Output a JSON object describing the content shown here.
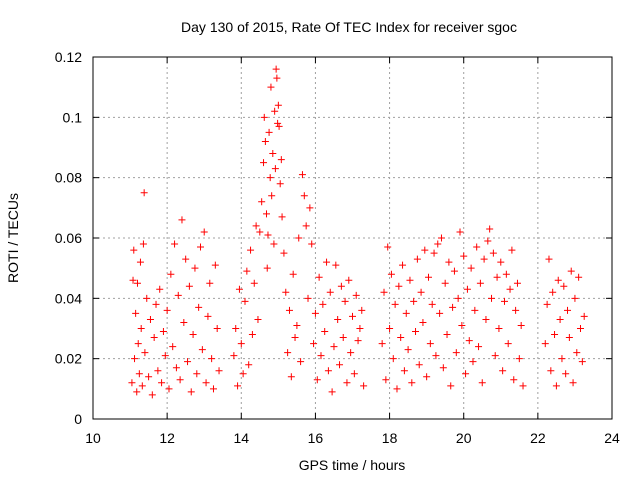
{
  "chart_data": {
    "type": "scatter",
    "title": "Day 130 of 2015, Rate Of TEC Index for receiver sgoc",
    "xlabel": "GPS time / hours",
    "ylabel": "ROTI / TECUs",
    "xlim": [
      10,
      24
    ],
    "ylim": [
      0,
      0.12
    ],
    "x_ticks": [
      10,
      12,
      14,
      16,
      18,
      20,
      22,
      24
    ],
    "x_tick_labels": [
      "10",
      "12",
      "14",
      "16",
      "18",
      "20",
      "22",
      "24"
    ],
    "y_ticks": [
      0,
      0.02,
      0.04,
      0.06,
      0.08,
      0.1,
      0.12
    ],
    "y_tick_labels": [
      "0",
      "0.02",
      "0.04",
      "0.06",
      "0.08",
      "0.1",
      "0.12"
    ],
    "grid": true,
    "marker": "+",
    "series_color": "#ff0000",
    "series": [
      {
        "name": "ROTI",
        "points": [
          [
            11.05,
            0.012
          ],
          [
            11.08,
            0.046
          ],
          [
            11.1,
            0.056
          ],
          [
            11.12,
            0.02
          ],
          [
            11.15,
            0.035
          ],
          [
            11.18,
            0.009
          ],
          [
            11.2,
            0.045
          ],
          [
            11.22,
            0.025
          ],
          [
            11.25,
            0.015
          ],
          [
            11.28,
            0.052
          ],
          [
            11.3,
            0.03
          ],
          [
            11.33,
            0.011
          ],
          [
            11.36,
            0.058
          ],
          [
            11.38,
            0.075
          ],
          [
            11.4,
            0.022
          ],
          [
            11.45,
            0.04
          ],
          [
            11.5,
            0.014
          ],
          [
            11.55,
            0.033
          ],
          [
            11.6,
            0.008
          ],
          [
            11.65,
            0.027
          ],
          [
            11.7,
            0.038
          ],
          [
            11.75,
            0.016
          ],
          [
            11.8,
            0.043
          ],
          [
            11.85,
            0.012
          ],
          [
            11.9,
            0.029
          ],
          [
            11.95,
            0.021
          ],
          [
            12.0,
            0.036
          ],
          [
            12.05,
            0.01
          ],
          [
            12.1,
            0.048
          ],
          [
            12.15,
            0.024
          ],
          [
            12.2,
            0.058
          ],
          [
            12.25,
            0.017
          ],
          [
            12.3,
            0.041
          ],
          [
            12.35,
            0.013
          ],
          [
            12.4,
            0.066
          ],
          [
            12.45,
            0.032
          ],
          [
            12.5,
            0.053
          ],
          [
            12.55,
            0.019
          ],
          [
            12.6,
            0.044
          ],
          [
            12.65,
            0.009
          ],
          [
            12.7,
            0.028
          ],
          [
            12.75,
            0.05
          ],
          [
            12.8,
            0.015
          ],
          [
            12.85,
            0.037
          ],
          [
            12.9,
            0.057
          ],
          [
            12.95,
            0.023
          ],
          [
            13.0,
            0.062
          ],
          [
            13.05,
            0.012
          ],
          [
            13.1,
            0.034
          ],
          [
            13.15,
            0.045
          ],
          [
            13.2,
            0.02
          ],
          [
            13.25,
            0.01
          ],
          [
            13.3,
            0.051
          ],
          [
            13.35,
            0.03
          ],
          [
            13.4,
            0.016
          ],
          [
            13.8,
            0.021
          ],
          [
            13.85,
            0.03
          ],
          [
            13.9,
            0.011
          ],
          [
            13.95,
            0.043
          ],
          [
            14.0,
            0.025
          ],
          [
            14.05,
            0.015
          ],
          [
            14.1,
            0.039
          ],
          [
            14.15,
            0.049
          ],
          [
            14.2,
            0.018
          ],
          [
            14.25,
            0.056
          ],
          [
            14.3,
            0.028
          ],
          [
            14.35,
            0.045
          ],
          [
            14.4,
            0.064
          ],
          [
            14.45,
            0.033
          ],
          [
            14.5,
            0.062
          ],
          [
            14.55,
            0.072
          ],
          [
            14.6,
            0.085
          ],
          [
            14.62,
            0.1
          ],
          [
            14.65,
            0.092
          ],
          [
            14.68,
            0.068
          ],
          [
            14.7,
            0.05
          ],
          [
            14.72,
            0.061
          ],
          [
            14.75,
            0.095
          ],
          [
            14.78,
            0.08
          ],
          [
            14.8,
            0.11
          ],
          [
            14.82,
            0.074
          ],
          [
            14.85,
            0.088
          ],
          [
            14.88,
            0.058
          ],
          [
            14.9,
            0.102
          ],
          [
            14.92,
            0.083
          ],
          [
            14.94,
            0.116
          ],
          [
            14.96,
            0.113
          ],
          [
            14.98,
            0.098
          ],
          [
            15.0,
            0.104
          ],
          [
            15.02,
            0.097
          ],
          [
            15.05,
            0.078
          ],
          [
            15.08,
            0.086
          ],
          [
            15.1,
            0.067
          ],
          [
            15.15,
            0.055
          ],
          [
            15.2,
            0.042
          ],
          [
            15.25,
            0.022
          ],
          [
            15.3,
            0.036
          ],
          [
            15.35,
            0.014
          ],
          [
            15.4,
            0.048
          ],
          [
            15.45,
            0.027
          ],
          [
            15.5,
            0.031
          ],
          [
            15.55,
            0.06
          ],
          [
            15.6,
            0.019
          ],
          [
            15.65,
            0.081
          ],
          [
            15.7,
            0.074
          ],
          [
            15.75,
            0.064
          ],
          [
            15.8,
            0.04
          ],
          [
            15.85,
            0.07
          ],
          [
            15.9,
            0.058
          ],
          [
            15.95,
            0.025
          ],
          [
            16.0,
            0.035
          ],
          [
            16.05,
            0.013
          ],
          [
            16.1,
            0.047
          ],
          [
            16.15,
            0.021
          ],
          [
            16.2,
            0.038
          ],
          [
            16.25,
            0.029
          ],
          [
            16.3,
            0.052
          ],
          [
            16.35,
            0.016
          ],
          [
            16.4,
            0.042
          ],
          [
            16.45,
            0.009
          ],
          [
            16.5,
            0.024
          ],
          [
            16.55,
            0.051
          ],
          [
            16.6,
            0.033
          ],
          [
            16.65,
            0.018
          ],
          [
            16.7,
            0.044
          ],
          [
            16.75,
            0.027
          ],
          [
            16.8,
            0.039
          ],
          [
            16.85,
            0.012
          ],
          [
            16.9,
            0.046
          ],
          [
            16.95,
            0.022
          ],
          [
            17.0,
            0.034
          ],
          [
            17.05,
            0.015
          ],
          [
            17.1,
            0.041
          ],
          [
            17.15,
            0.026
          ],
          [
            17.2,
            0.03
          ],
          [
            17.25,
            0.036
          ],
          [
            17.3,
            0.011
          ],
          [
            17.8,
            0.025
          ],
          [
            17.85,
            0.042
          ],
          [
            17.9,
            0.013
          ],
          [
            17.95,
            0.057
          ],
          [
            18.0,
            0.03
          ],
          [
            18.05,
            0.048
          ],
          [
            18.1,
            0.02
          ],
          [
            18.15,
            0.038
          ],
          [
            18.2,
            0.01
          ],
          [
            18.25,
            0.044
          ],
          [
            18.3,
            0.027
          ],
          [
            18.35,
            0.051
          ],
          [
            18.4,
            0.016
          ],
          [
            18.45,
            0.035
          ],
          [
            18.5,
            0.023
          ],
          [
            18.55,
            0.046
          ],
          [
            18.6,
            0.012
          ],
          [
            18.65,
            0.039
          ],
          [
            18.7,
            0.029
          ],
          [
            18.75,
            0.053
          ],
          [
            18.8,
            0.018
          ],
          [
            18.85,
            0.042
          ],
          [
            18.9,
            0.032
          ],
          [
            18.95,
            0.056
          ],
          [
            19.0,
            0.014
          ],
          [
            19.05,
            0.047
          ],
          [
            19.1,
            0.025
          ],
          [
            19.15,
            0.038
          ],
          [
            19.2,
            0.055
          ],
          [
            19.25,
            0.021
          ],
          [
            19.3,
            0.058
          ],
          [
            19.35,
            0.035
          ],
          [
            19.4,
            0.06
          ],
          [
            19.45,
            0.017
          ],
          [
            19.5,
            0.045
          ],
          [
            19.55,
            0.028
          ],
          [
            19.6,
            0.052
          ],
          [
            19.65,
            0.011
          ],
          [
            19.7,
            0.037
          ],
          [
            19.75,
            0.049
          ],
          [
            19.8,
            0.022
          ],
          [
            19.85,
            0.04
          ],
          [
            19.9,
            0.062
          ],
          [
            19.95,
            0.031
          ],
          [
            20.0,
            0.054
          ],
          [
            20.05,
            0.015
          ],
          [
            20.1,
            0.043
          ],
          [
            20.15,
            0.026
          ],
          [
            20.2,
            0.05
          ],
          [
            20.25,
            0.019
          ],
          [
            20.3,
            0.036
          ],
          [
            20.35,
            0.057
          ],
          [
            20.4,
            0.024
          ],
          [
            20.45,
            0.045
          ],
          [
            20.5,
            0.012
          ],
          [
            20.55,
            0.053
          ],
          [
            20.6,
            0.033
          ],
          [
            20.65,
            0.059
          ],
          [
            20.7,
            0.063
          ],
          [
            20.75,
            0.04
          ],
          [
            20.8,
            0.055
          ],
          [
            20.85,
            0.021
          ],
          [
            20.9,
            0.047
          ],
          [
            20.95,
            0.03
          ],
          [
            21.0,
            0.052
          ],
          [
            21.05,
            0.016
          ],
          [
            21.1,
            0.039
          ],
          [
            21.15,
            0.048
          ],
          [
            21.2,
            0.025
          ],
          [
            21.25,
            0.043
          ],
          [
            21.3,
            0.056
          ],
          [
            21.35,
            0.013
          ],
          [
            21.4,
            0.036
          ],
          [
            21.45,
            0.045
          ],
          [
            21.5,
            0.02
          ],
          [
            21.55,
            0.031
          ],
          [
            21.6,
            0.011
          ],
          [
            22.2,
            0.025
          ],
          [
            22.25,
            0.038
          ],
          [
            22.3,
            0.053
          ],
          [
            22.35,
            0.016
          ],
          [
            22.4,
            0.042
          ],
          [
            22.45,
            0.028
          ],
          [
            22.5,
            0.011
          ],
          [
            22.55,
            0.046
          ],
          [
            22.6,
            0.033
          ],
          [
            22.65,
            0.02
          ],
          [
            22.7,
            0.044
          ],
          [
            22.75,
            0.015
          ],
          [
            22.8,
            0.036
          ],
          [
            22.85,
            0.027
          ],
          [
            22.9,
            0.049
          ],
          [
            22.95,
            0.012
          ],
          [
            23.0,
            0.04
          ],
          [
            23.05,
            0.022
          ],
          [
            23.1,
            0.047
          ],
          [
            23.15,
            0.03
          ],
          [
            23.2,
            0.019
          ],
          [
            23.25,
            0.034
          ]
        ]
      }
    ]
  }
}
